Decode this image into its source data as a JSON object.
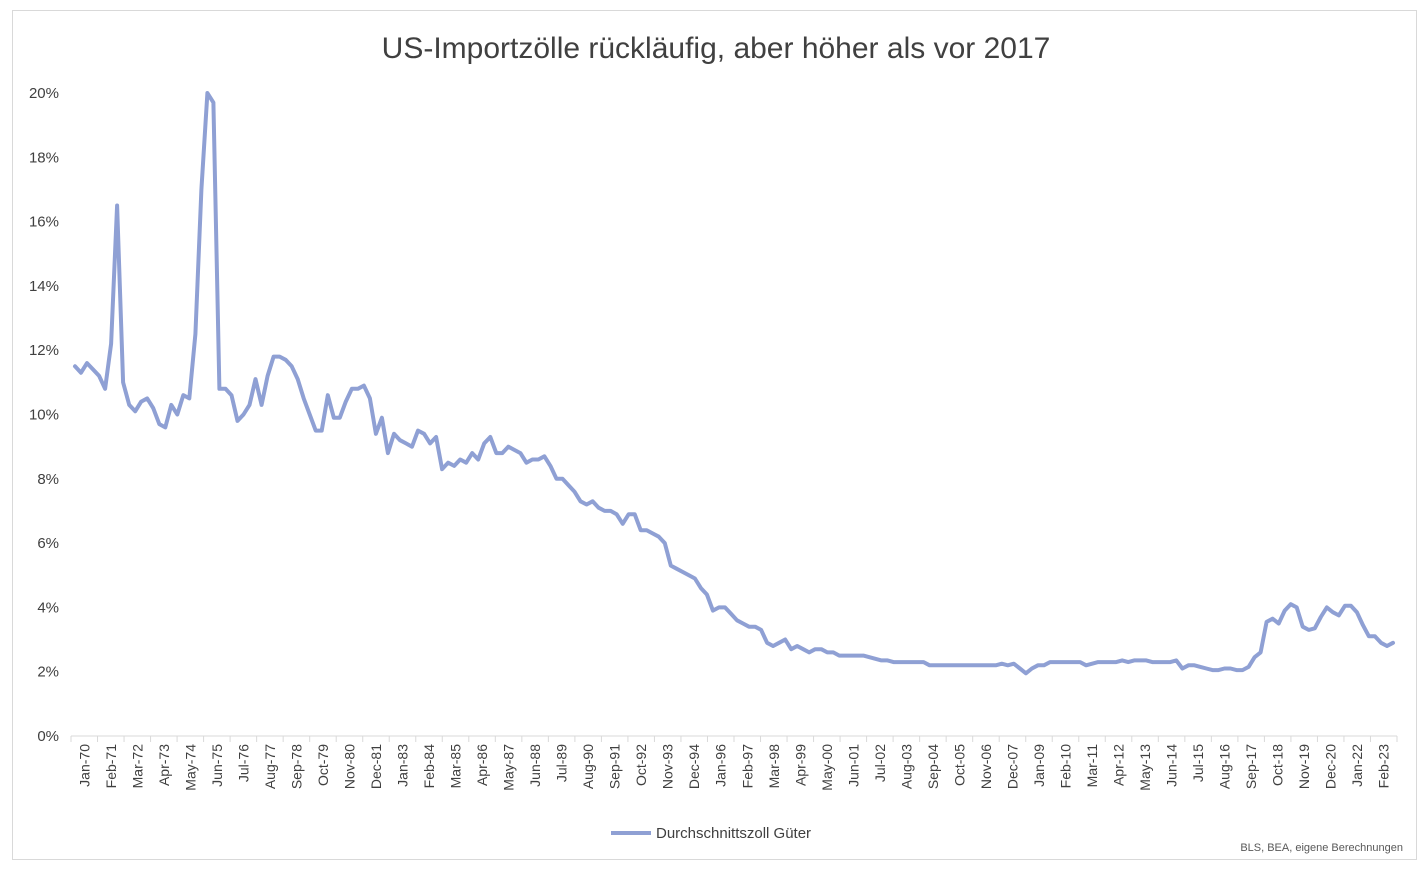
{
  "chart_data": {
    "type": "line",
    "title": "US-Importzölle rückläufig, aber höher als vor 2017",
    "xlabel": "",
    "ylabel": "",
    "ylim": [
      0,
      0.2
    ],
    "yticks": [
      0,
      0.02,
      0.04,
      0.06,
      0.08,
      0.1,
      0.12,
      0.14,
      0.16,
      0.18,
      0.2
    ],
    "ytick_labels": [
      "0%",
      "2%",
      "4%",
      "6%",
      "8%",
      "10%",
      "12%",
      "14%",
      "16%",
      "18%",
      "20%"
    ],
    "x_tick_labels": [
      "Jan-70",
      "Feb-71",
      "Mar-72",
      "Apr-73",
      "May-74",
      "Jun-75",
      "Jul-76",
      "Aug-77",
      "Sep-78",
      "Oct-79",
      "Nov-80",
      "Dec-81",
      "Jan-83",
      "Feb-84",
      "Mar-85",
      "Apr-86",
      "May-87",
      "Jun-88",
      "Jul-89",
      "Aug-90",
      "Sep-91",
      "Oct-92",
      "Nov-93",
      "Dec-94",
      "Jan-96",
      "Feb-97",
      "Mar-98",
      "Apr-99",
      "May-00",
      "Jun-01",
      "Jul-02",
      "Aug-03",
      "Sep-04",
      "Oct-05",
      "Nov-06",
      "Dec-07",
      "Jan-09",
      "Feb-10",
      "Mar-11",
      "Apr-12",
      "May-13",
      "Jun-14",
      "Jul-15",
      "Aug-16",
      "Sep-17",
      "Oct-18",
      "Nov-19",
      "Dec-20",
      "Jan-22",
      "Feb-23"
    ],
    "grid": false,
    "legend_position": "bottom",
    "series": [
      {
        "name": "Durchschnittszoll Güter",
        "color": "#8fa0d4",
        "x_start": "Jan-70",
        "step": "quarter",
        "values": [
          0.115,
          0.113,
          0.116,
          0.114,
          0.112,
          0.108,
          0.122,
          0.165,
          0.11,
          0.103,
          0.101,
          0.104,
          0.105,
          0.102,
          0.097,
          0.096,
          0.103,
          0.1,
          0.106,
          0.105,
          0.125,
          0.17,
          0.2,
          0.197,
          0.108,
          0.108,
          0.106,
          0.098,
          0.1,
          0.103,
          0.111,
          0.103,
          0.112,
          0.118,
          0.118,
          0.117,
          0.115,
          0.111,
          0.105,
          0.1,
          0.095,
          0.095,
          0.106,
          0.099,
          0.099,
          0.104,
          0.108,
          0.108,
          0.109,
          0.105,
          0.094,
          0.099,
          0.088,
          0.094,
          0.092,
          0.091,
          0.09,
          0.095,
          0.094,
          0.091,
          0.093,
          0.083,
          0.085,
          0.084,
          0.086,
          0.085,
          0.088,
          0.086,
          0.091,
          0.093,
          0.088,
          0.088,
          0.09,
          0.089,
          0.088,
          0.085,
          0.086,
          0.086,
          0.087,
          0.084,
          0.08,
          0.08,
          0.078,
          0.076,
          0.073,
          0.072,
          0.073,
          0.071,
          0.07,
          0.07,
          0.069,
          0.066,
          0.069,
          0.069,
          0.064,
          0.064,
          0.063,
          0.062,
          0.06,
          0.053,
          0.052,
          0.051,
          0.05,
          0.049,
          0.046,
          0.044,
          0.039,
          0.04,
          0.04,
          0.038,
          0.036,
          0.035,
          0.034,
          0.034,
          0.033,
          0.029,
          0.028,
          0.029,
          0.03,
          0.027,
          0.028,
          0.027,
          0.026,
          0.027,
          0.027,
          0.026,
          0.026,
          0.025,
          0.025,
          0.025,
          0.025,
          0.025,
          0.0245,
          0.024,
          0.0235,
          0.0235,
          0.023,
          0.023,
          0.023,
          0.023,
          0.023,
          0.023,
          0.022,
          0.022,
          0.022,
          0.022,
          0.022,
          0.022,
          0.022,
          0.022,
          0.022,
          0.022,
          0.022,
          0.022,
          0.0225,
          0.022,
          0.0225,
          0.021,
          0.0195,
          0.021,
          0.022,
          0.022,
          0.023,
          0.023,
          0.023,
          0.023,
          0.023,
          0.023,
          0.022,
          0.0225,
          0.023,
          0.023,
          0.023,
          0.023,
          0.0235,
          0.023,
          0.0235,
          0.0235,
          0.0235,
          0.023,
          0.023,
          0.023,
          0.023,
          0.0235,
          0.021,
          0.022,
          0.022,
          0.0215,
          0.021,
          0.0205,
          0.0205,
          0.021,
          0.021,
          0.0205,
          0.0205,
          0.0215,
          0.0245,
          0.026,
          0.0355,
          0.0365,
          0.035,
          0.039,
          0.041,
          0.04,
          0.034,
          0.033,
          0.0335,
          0.037,
          0.04,
          0.0385,
          0.0375,
          0.0405,
          0.0405,
          0.0385,
          0.0345,
          0.031,
          0.031,
          0.029,
          0.028,
          0.029
        ]
      }
    ],
    "legend": [
      {
        "label": "Durchschnittszoll Güter",
        "color": "#8fa0d4"
      }
    ],
    "source": "BLS, BEA, eigene Berechnungen"
  }
}
